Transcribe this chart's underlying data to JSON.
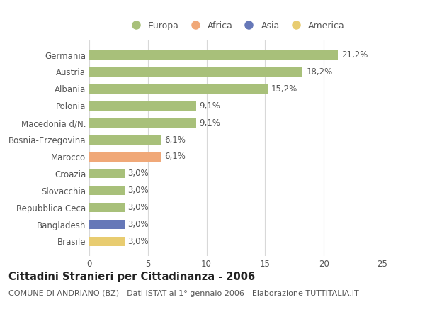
{
  "categories": [
    "Germania",
    "Austria",
    "Albania",
    "Polonia",
    "Macedonia d/N.",
    "Bosnia-Erzegovina",
    "Marocco",
    "Croazia",
    "Slovacchia",
    "Repubblica Ceca",
    "Bangladesh",
    "Brasile"
  ],
  "values": [
    21.2,
    18.2,
    15.2,
    9.1,
    9.1,
    6.1,
    6.1,
    3.0,
    3.0,
    3.0,
    3.0,
    3.0
  ],
  "labels": [
    "21,2%",
    "18,2%",
    "15,2%",
    "9,1%",
    "9,1%",
    "6,1%",
    "6,1%",
    "3,0%",
    "3,0%",
    "3,0%",
    "3,0%",
    "3,0%"
  ],
  "bar_colors": [
    "#a8c07a",
    "#a8c07a",
    "#a8c07a",
    "#a8c07a",
    "#a8c07a",
    "#a8c07a",
    "#f0a878",
    "#a8c07a",
    "#a8c07a",
    "#a8c07a",
    "#6678b8",
    "#e8cc70"
  ],
  "legend_items": [
    {
      "label": "Europa",
      "color": "#a8c07a"
    },
    {
      "label": "Africa",
      "color": "#f0a878"
    },
    {
      "label": "Asia",
      "color": "#6678b8"
    },
    {
      "label": "America",
      "color": "#e8cc70"
    }
  ],
  "xlim": [
    0,
    25
  ],
  "xticks": [
    0,
    5,
    10,
    15,
    20,
    25
  ],
  "title": "Cittadini Stranieri per Cittadinanza - 2006",
  "subtitle": "COMUNE DI ANDRIANO (BZ) - Dati ISTAT al 1° gennaio 2006 - Elaborazione TUTTITALIA.IT",
  "background_color": "#ffffff",
  "grid_color": "#d8d8d8",
  "bar_height": 0.55,
  "label_fontsize": 8.5,
  "tick_fontsize": 8.5,
  "title_fontsize": 10.5,
  "subtitle_fontsize": 8.0,
  "legend_fontsize": 9.0
}
